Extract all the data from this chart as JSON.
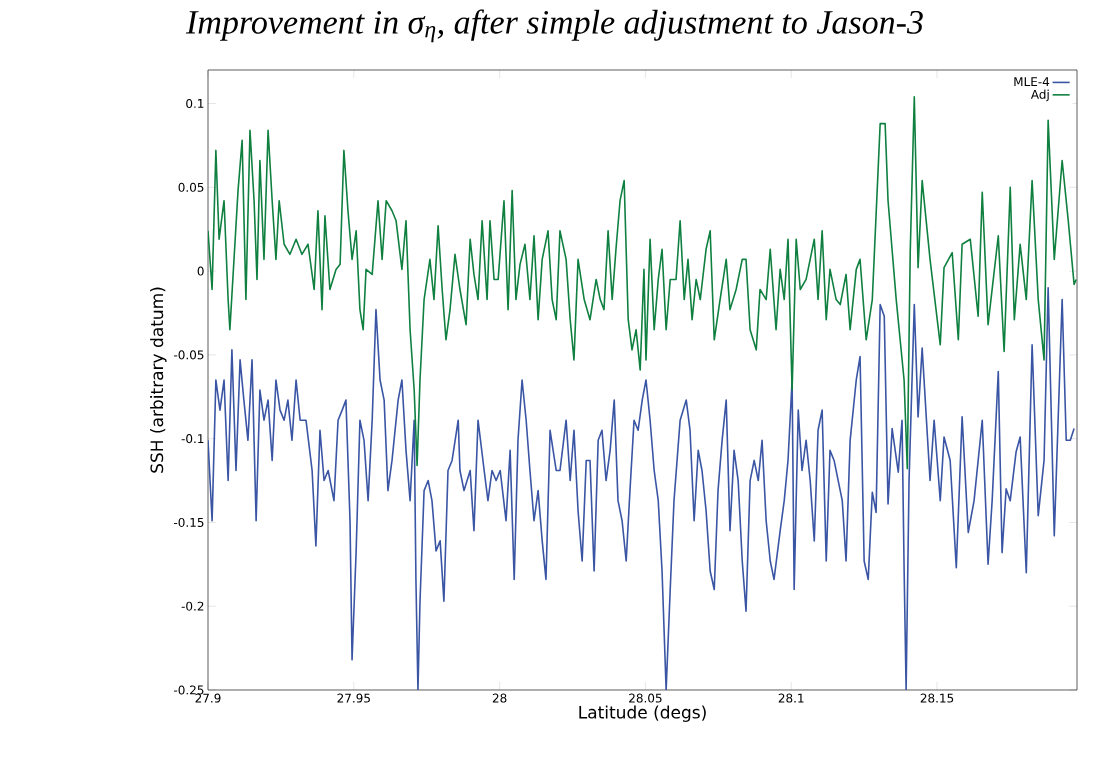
{
  "chart_data": {
    "type": "line",
    "title": "Improvement in σ$_{η}$, after simple adjustment to Jason-3",
    "xlabel": "Latitude (degs)",
    "ylabel": "SSH (arbitrary datum)",
    "xlim": [
      27.9,
      28.198
    ],
    "ylim": [
      -0.25,
      0.12
    ],
    "xticks": [
      27.9,
      27.95,
      28,
      28.05,
      28.1,
      28.15
    ],
    "yticks": [
      -0.25,
      -0.2,
      -0.15,
      -0.1,
      -0.05,
      0,
      0.05,
      0.1
    ],
    "legend": "top right",
    "grid": false,
    "marker": "none",
    "line_style": "solid",
    "series": [
      {
        "name": "MLE-4",
        "color": "#3a55a4",
        "x": [
          27.9,
          27.9014,
          27.9027,
          27.9041,
          27.9055,
          27.9069,
          27.9082,
          27.9096,
          27.911,
          27.9123,
          27.9137,
          27.9151,
          27.9165,
          27.9178,
          27.9192,
          27.9206,
          27.922,
          27.9233,
          27.9247,
          27.9261,
          27.9274,
          27.9288,
          27.9302,
          27.9316,
          27.9336,
          27.9357,
          27.937,
          27.9384,
          27.9398,
          27.9412,
          27.9432,
          27.9446,
          27.946,
          27.9473,
          27.9487,
          27.9494,
          27.9508,
          27.9521,
          27.9535,
          27.9549,
          27.9563,
          27.9576,
          27.959,
          27.9604,
          27.9617,
          27.9631,
          27.9652,
          27.9665,
          27.9679,
          27.9693,
          27.9707,
          27.9713,
          27.972,
          27.9727,
          27.9741,
          27.9755,
          27.9768,
          27.9782,
          27.9796,
          27.9809,
          27.9823,
          27.9837,
          27.9858,
          27.9864,
          27.9878,
          27.9899,
          27.9912,
          27.9926,
          27.9947,
          27.996,
          27.9974,
          27.9988,
          28.0002,
          28.0022,
          28.0036,
          28.005,
          28.0063,
          28.0077,
          28.0091,
          28.0104,
          28.0118,
          28.0132,
          28.0146,
          28.0159,
          28.0173,
          28.0194,
          28.0207,
          28.0228,
          28.0242,
          28.0255,
          28.0269,
          28.0283,
          28.0297,
          28.031,
          28.0324,
          28.0338,
          28.0351,
          28.0365,
          28.0379,
          28.0393,
          28.0406,
          28.042,
          28.0434,
          28.0447,
          28.0461,
          28.0475,
          28.0489,
          28.0502,
          28.0516,
          28.053,
          28.0544,
          28.0557,
          28.0571,
          28.0585,
          28.0598,
          28.0619,
          28.064,
          28.0653,
          28.0667,
          28.0681,
          28.0694,
          28.0708,
          28.0722,
          28.0736,
          28.0749,
          28.0763,
          28.0777,
          28.079,
          28.0804,
          28.0818,
          28.0832,
          28.0845,
          28.0859,
          28.0873,
          28.0887,
          28.09,
          28.0914,
          28.0928,
          28.0941,
          28.0962,
          28.0976,
          28.0989,
          28.1003,
          28.101,
          28.1024,
          28.1037,
          28.1051,
          28.1065,
          28.1079,
          28.1092,
          28.1106,
          28.112,
          28.1133,
          28.1147,
          28.1161,
          28.1175,
          28.1188,
          28.1202,
          28.1223,
          28.1236,
          28.125,
          28.1264,
          28.1278,
          28.1291,
          28.1305,
          28.1319,
          28.1332,
          28.1346,
          28.1367,
          28.138,
          28.1387,
          28.1394,
          28.1404,
          28.1422,
          28.1435,
          28.1449,
          28.1476,
          28.149,
          28.1511,
          28.1524,
          28.1545,
          28.1566,
          28.1586,
          28.1607,
          28.1627,
          28.1655,
          28.1675,
          28.1689,
          28.171,
          28.1723,
          28.1737,
          28.1751,
          28.1771,
          28.1785,
          28.1806,
          28.1826,
          28.1847,
          28.1867,
          28.1881,
          28.1902,
          28.1929,
          28.1943,
          28.1957,
          28.197
        ],
        "values": [
          -0.101,
          -0.149,
          -0.065,
          -0.083,
          -0.065,
          -0.125,
          -0.047,
          -0.119,
          -0.053,
          -0.077,
          -0.101,
          -0.053,
          -0.149,
          -0.071,
          -0.089,
          -0.077,
          -0.113,
          -0.065,
          -0.083,
          -0.089,
          -0.077,
          -0.101,
          -0.065,
          -0.089,
          -0.089,
          -0.119,
          -0.164,
          -0.095,
          -0.125,
          -0.119,
          -0.137,
          -0.089,
          -0.083,
          -0.077,
          -0.149,
          -0.232,
          -0.167,
          -0.089,
          -0.101,
          -0.137,
          -0.089,
          -0.023,
          -0.065,
          -0.077,
          -0.131,
          -0.113,
          -0.077,
          -0.065,
          -0.107,
          -0.137,
          -0.089,
          -0.184,
          -0.25,
          -0.197,
          -0.131,
          -0.125,
          -0.137,
          -0.167,
          -0.161,
          -0.197,
          -0.119,
          -0.113,
          -0.089,
          -0.119,
          -0.131,
          -0.119,
          -0.155,
          -0.089,
          -0.119,
          -0.137,
          -0.119,
          -0.125,
          -0.119,
          -0.149,
          -0.107,
          -0.184,
          -0.101,
          -0.065,
          -0.089,
          -0.119,
          -0.149,
          -0.131,
          -0.161,
          -0.184,
          -0.095,
          -0.119,
          -0.119,
          -0.089,
          -0.125,
          -0.095,
          -0.143,
          -0.173,
          -0.113,
          -0.113,
          -0.179,
          -0.101,
          -0.095,
          -0.125,
          -0.107,
          -0.077,
          -0.137,
          -0.149,
          -0.173,
          -0.131,
          -0.089,
          -0.095,
          -0.077,
          -0.065,
          -0.089,
          -0.119,
          -0.137,
          -0.179,
          -0.25,
          -0.19,
          -0.137,
          -0.089,
          -0.077,
          -0.095,
          -0.149,
          -0.107,
          -0.119,
          -0.143,
          -0.179,
          -0.19,
          -0.131,
          -0.101,
          -0.077,
          -0.155,
          -0.107,
          -0.125,
          -0.173,
          -0.203,
          -0.125,
          -0.113,
          -0.125,
          -0.101,
          -0.149,
          -0.173,
          -0.184,
          -0.155,
          -0.137,
          -0.113,
          -0.065,
          -0.19,
          -0.083,
          -0.119,
          -0.101,
          -0.125,
          -0.161,
          -0.095,
          -0.083,
          -0.173,
          -0.107,
          -0.113,
          -0.125,
          -0.137,
          -0.173,
          -0.101,
          -0.065,
          -0.051,
          -0.173,
          -0.184,
          -0.132,
          -0.144,
          -0.02,
          -0.027,
          -0.139,
          -0.094,
          -0.12,
          -0.089,
          -0.177,
          -0.25,
          -0.125,
          -0.02,
          -0.087,
          -0.046,
          -0.125,
          -0.089,
          -0.137,
          -0.099,
          -0.113,
          -0.177,
          -0.087,
          -0.156,
          -0.137,
          -0.089,
          -0.175,
          -0.137,
          -0.06,
          -0.168,
          -0.13,
          -0.137,
          -0.108,
          -0.099,
          -0.18,
          -0.044,
          -0.146,
          -0.113,
          -0.01,
          -0.158,
          -0.017,
          -0.101,
          -0.101,
          -0.094
        ]
      },
      {
        "name": "Adj",
        "color": "#0f8040",
        "x": [
          27.9,
          27.9014,
          27.9027,
          27.9038,
          27.9055,
          27.9069,
          27.9075,
          27.9103,
          27.9117,
          27.913,
          27.9144,
          27.9158,
          27.9168,
          27.9178,
          27.9192,
          27.9206,
          27.922,
          27.9233,
          27.9244,
          27.9261,
          27.9281,
          27.9302,
          27.9322,
          27.9343,
          27.9364,
          27.9377,
          27.9391,
          27.9401,
          27.9418,
          27.9439,
          27.9453,
          27.9466,
          27.948,
          27.9494,
          27.9508,
          27.9521,
          27.9532,
          27.9542,
          27.9563,
          27.9583,
          27.9597,
          27.9611,
          27.9631,
          27.9645,
          27.9665,
          27.9679,
          27.9693,
          27.9707,
          27.9717,
          27.9727,
          27.9741,
          27.9761,
          27.9775,
          27.9789,
          27.9803,
          27.9816,
          27.983,
          27.9847,
          27.9864,
          27.9885,
          27.9899,
          27.9912,
          27.9926,
          27.994,
          27.9957,
          27.9967,
          27.9981,
          27.9995,
          28.0015,
          28.0029,
          28.0043,
          28.0056,
          28.007,
          28.0087,
          28.0104,
          28.0118,
          28.0132,
          28.0146,
          28.0166,
          28.018,
          28.0194,
          28.0207,
          28.0228,
          28.0242,
          28.0255,
          28.0269,
          28.029,
          28.031,
          28.0331,
          28.0345,
          28.0358,
          28.0372,
          28.0386,
          28.0399,
          28.0413,
          28.0427,
          28.0441,
          28.0454,
          28.0468,
          28.0482,
          28.0495,
          28.0502,
          28.0516,
          28.053,
          28.0544,
          28.0557,
          28.0571,
          28.0585,
          28.0605,
          28.0619,
          28.0633,
          28.0646,
          28.066,
          28.0674,
          28.0688,
          28.0708,
          28.0722,
          28.0736,
          28.0756,
          28.0777,
          28.079,
          28.0811,
          28.0832,
          28.0845,
          28.0859,
          28.088,
          28.0893,
          28.0914,
          28.0928,
          28.0948,
          28.0962,
          28.0976,
          28.0989,
          28.1003,
          28.1017,
          28.1031,
          28.1051,
          28.1079,
          28.1092,
          28.1106,
          28.112,
          28.1133,
          28.1154,
          28.1168,
          28.1188,
          28.1202,
          28.1223,
          28.1236,
          28.1257,
          28.1278,
          28.1305,
          28.1322,
          28.1332,
          28.136,
          28.1387,
          28.1398,
          28.1408,
          28.1422,
          28.1435,
          28.1449,
          28.1476,
          28.1511,
          28.1524,
          28.1552,
          28.1573,
          28.1586,
          28.1614,
          28.1641,
          28.1655,
          28.1675,
          28.171,
          28.173,
          28.1751,
          28.1765,
          28.1785,
          28.1806,
          28.1826,
          28.1847,
          28.1867,
          28.1881,
          28.1902,
          28.1929,
          28.195,
          28.197,
          28.1977
        ],
        "values": [
          0.024,
          -0.011,
          0.072,
          0.019,
          0.042,
          -0.017,
          -0.035,
          0.048,
          0.078,
          -0.017,
          0.084,
          0.042,
          -0.005,
          0.066,
          0.007,
          0.084,
          0.042,
          0.007,
          0.042,
          0.016,
          0.01,
          0.019,
          0.01,
          0.016,
          -0.011,
          0.036,
          -0.023,
          0.033,
          -0.011,
          0.001,
          0.004,
          0.072,
          0.036,
          0.007,
          0.024,
          -0.023,
          -0.035,
          0.001,
          -0.002,
          0.042,
          0.007,
          0.042,
          0.036,
          0.03,
          0.001,
          0.03,
          -0.035,
          -0.071,
          -0.116,
          -0.065,
          -0.017,
          0.007,
          -0.017,
          0.027,
          -0.011,
          -0.041,
          -0.023,
          0.01,
          -0.011,
          -0.032,
          0.019,
          -0.002,
          -0.017,
          0.03,
          -0.017,
          0.03,
          -0.005,
          -0.005,
          0.042,
          -0.023,
          0.048,
          -0.017,
          0.004,
          0.016,
          -0.017,
          0.021,
          -0.029,
          0.007,
          0.024,
          -0.017,
          -0.029,
          0.024,
          0.007,
          -0.029,
          -0.053,
          0.007,
          -0.017,
          -0.029,
          -0.005,
          -0.017,
          -0.023,
          0.024,
          -0.017,
          0.013,
          0.042,
          0.054,
          -0.029,
          -0.047,
          -0.035,
          -0.059,
          0.001,
          -0.053,
          0.019,
          -0.035,
          -0.005,
          0.013,
          -0.035,
          -0.005,
          -0.005,
          0.03,
          -0.017,
          0.007,
          -0.029,
          -0.005,
          -0.017,
          0.013,
          0.024,
          -0.041,
          -0.017,
          0.007,
          -0.023,
          -0.011,
          0.007,
          0.007,
          -0.035,
          -0.047,
          -0.011,
          -0.017,
          0.013,
          -0.035,
          0.001,
          -0.017,
          0.019,
          -0.071,
          0.019,
          -0.011,
          -0.005,
          0.019,
          -0.017,
          0.024,
          -0.029,
          0.001,
          -0.017,
          -0.02,
          -0.002,
          -0.035,
          0.001,
          0.007,
          -0.041,
          -0.017,
          0.088,
          0.088,
          0.042,
          -0.017,
          -0.065,
          -0.118,
          0.011,
          0.104,
          0.002,
          0.054,
          0.007,
          -0.044,
          0.002,
          0.011,
          -0.041,
          0.016,
          0.019,
          -0.027,
          0.047,
          -0.032,
          0.021,
          -0.048,
          0.05,
          -0.029,
          0.016,
          -0.017,
          0.054,
          -0.017,
          -0.053,
          0.09,
          0.007,
          0.066,
          0.03,
          -0.008,
          -0.005
        ]
      }
    ]
  }
}
